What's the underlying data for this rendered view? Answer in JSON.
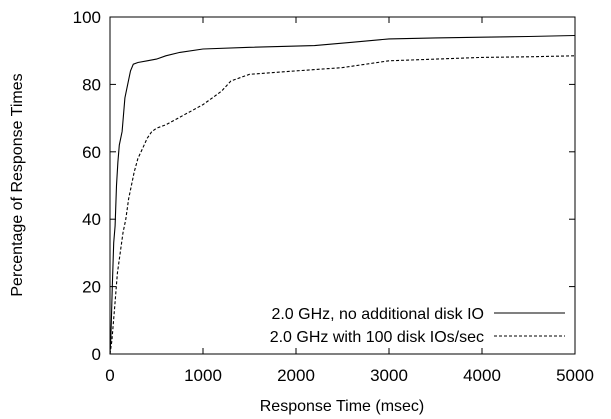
{
  "chart_data": {
    "type": "line",
    "xlabel": "Response Time (msec)",
    "ylabel": "Percentage of Response Times",
    "xlim": [
      0,
      5000
    ],
    "ylim": [
      0,
      100
    ],
    "xticks": [
      0,
      1000,
      2000,
      3000,
      4000,
      5000
    ],
    "yticks": [
      0,
      20,
      40,
      60,
      80,
      100
    ],
    "grid": false,
    "legend_position": "bottom-right",
    "series": [
      {
        "name": "2.0 GHz, no additional disk IO",
        "style": "solid",
        "color": "#000000",
        "x": [
          0,
          10,
          25,
          40,
          55,
          70,
          85,
          100,
          130,
          160,
          190,
          220,
          250,
          300,
          400,
          500,
          600,
          750,
          1000,
          1500,
          2200,
          2600,
          3000,
          3500,
          4000,
          4500,
          5000
        ],
        "y": [
          0,
          5,
          20,
          33,
          38,
          50,
          57,
          62,
          66,
          76,
          80,
          84,
          86,
          86.5,
          87,
          87.5,
          88.5,
          89.5,
          90.5,
          91,
          91.5,
          92.5,
          93.5,
          93.8,
          94,
          94.2,
          94.5
        ]
      },
      {
        "name": "2.0 GHz with 100 disk IOs/sec",
        "style": "dashed",
        "color": "#000000",
        "x": [
          0,
          20,
          50,
          80,
          110,
          140,
          170,
          200,
          230,
          260,
          300,
          350,
          400,
          450,
          500,
          600,
          700,
          800,
          900,
          1000,
          1100,
          1200,
          1300,
          1500,
          2000,
          2500,
          3000,
          3500,
          4000,
          4500,
          5000
        ],
        "y": [
          0,
          4,
          14,
          24,
          30,
          36,
          40,
          46,
          50,
          54,
          58,
          61,
          64,
          66,
          67,
          68,
          69.5,
          71,
          72.5,
          74,
          76,
          78,
          81,
          83,
          84,
          85,
          87,
          87.5,
          88,
          88.2,
          88.5
        ]
      }
    ]
  }
}
